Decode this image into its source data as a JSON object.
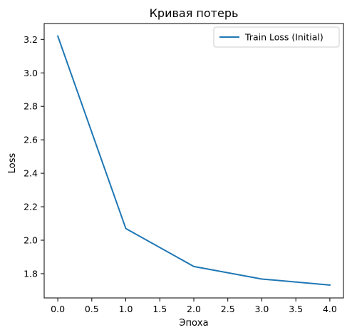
{
  "chart_data": {
    "type": "line",
    "title": "Кривая потерь",
    "xlabel": "Эпоха",
    "ylabel": "Loss",
    "xlim": [
      -0.2,
      4.2
    ],
    "ylim": [
      1.655,
      3.295
    ],
    "xticks": [
      0.0,
      0.5,
      1.0,
      1.5,
      2.0,
      2.5,
      3.0,
      3.5,
      4.0
    ],
    "xtick_labels": [
      "0.0",
      "0.5",
      "1.0",
      "1.5",
      "2.0",
      "2.5",
      "3.0",
      "3.5",
      "4.0"
    ],
    "yticks": [
      1.8,
      2.0,
      2.2,
      2.4,
      2.6,
      2.8,
      3.0,
      3.2
    ],
    "ytick_labels": [
      "1.8",
      "2.0",
      "2.2",
      "2.4",
      "2.6",
      "2.8",
      "3.0",
      "3.2"
    ],
    "grid": false,
    "legend_position": "top-right",
    "series": [
      {
        "name": "Train Loss (Initial)",
        "color": "#1f77b4",
        "x": [
          0,
          1,
          2,
          3,
          4
        ],
        "y": [
          3.22,
          2.07,
          1.843,
          1.768,
          1.732
        ]
      }
    ]
  }
}
